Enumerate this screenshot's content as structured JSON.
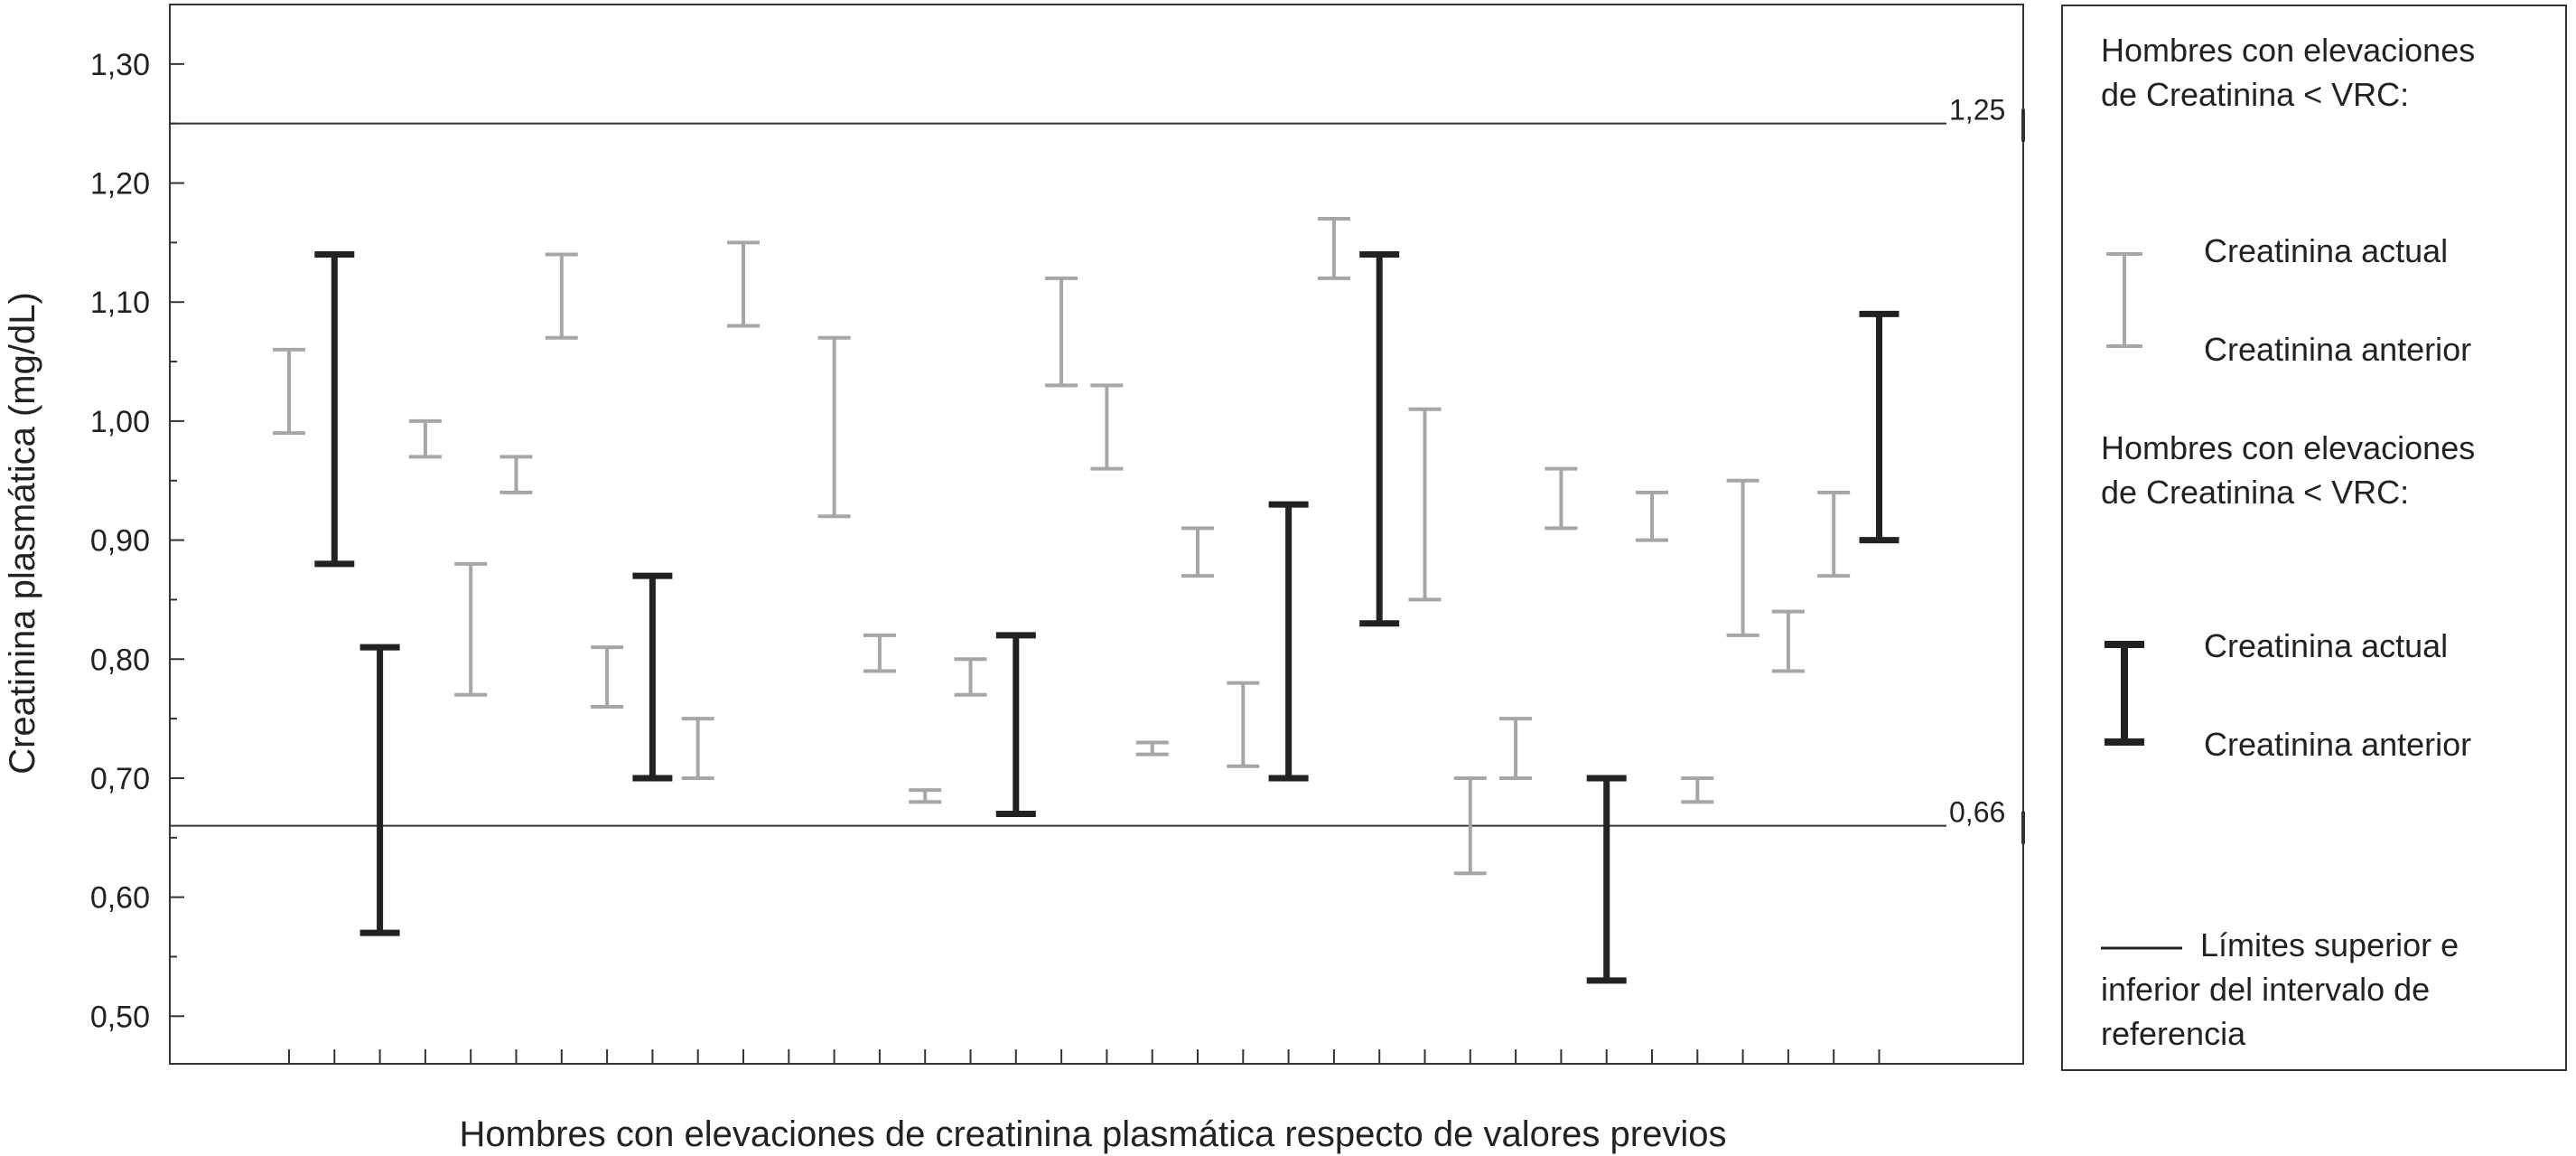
{
  "chart_data": {
    "type": "range_bar",
    "title": "",
    "xlabel": "Hombres con elevaciones de creatinina plasmática respecto de valores previos",
    "ylabel": "Creatinina plasmática (mg/dL)",
    "ylim": [
      0.46,
      1.35
    ],
    "yticks": [
      "0,50",
      "0,60",
      "0,70",
      "0,80",
      "0,90",
      "1,00",
      "1,10",
      "1,20",
      "1,30"
    ],
    "ytick_values": [
      0.5,
      0.6,
      0.7,
      0.8,
      0.9,
      1.0,
      1.1,
      1.2,
      1.3
    ],
    "grid": false,
    "x_tick_count": 36,
    "reference_lines": [
      {
        "label": "1,25",
        "value": 1.25
      },
      {
        "label": "0,66",
        "value": 0.66
      }
    ],
    "series": [
      {
        "group": "lt_vrc",
        "color": "#a6a6a6",
        "points": [
          {
            "x": 1,
            "low": 0.99,
            "high": 1.06
          },
          {
            "x": 4,
            "low": 0.97,
            "high": 1.0
          },
          {
            "x": 5,
            "low": 0.77,
            "high": 0.88
          },
          {
            "x": 6,
            "low": 0.94,
            "high": 0.97
          },
          {
            "x": 7,
            "low": 1.07,
            "high": 1.14
          },
          {
            "x": 8,
            "low": 0.76,
            "high": 0.81
          },
          {
            "x": 10,
            "low": 0.7,
            "high": 0.75
          },
          {
            "x": 11,
            "low": 1.08,
            "high": 1.15
          },
          {
            "x": 13,
            "low": 0.92,
            "high": 1.07
          },
          {
            "x": 14,
            "low": 0.79,
            "high": 0.82
          },
          {
            "x": 15,
            "low": 0.68,
            "high": 0.69
          },
          {
            "x": 16,
            "low": 0.77,
            "high": 0.8
          },
          {
            "x": 18,
            "low": 1.03,
            "high": 1.12
          },
          {
            "x": 19,
            "low": 0.96,
            "high": 1.03
          },
          {
            "x": 20,
            "low": 0.72,
            "high": 0.73
          },
          {
            "x": 21,
            "low": 0.87,
            "high": 0.91
          },
          {
            "x": 22,
            "low": 0.71,
            "high": 0.78
          },
          {
            "x": 24,
            "low": 1.12,
            "high": 1.17
          },
          {
            "x": 26,
            "low": 0.85,
            "high": 1.01
          },
          {
            "x": 27,
            "low": 0.62,
            "high": 0.7
          },
          {
            "x": 28,
            "low": 0.7,
            "high": 0.75
          },
          {
            "x": 29,
            "low": 0.91,
            "high": 0.96
          },
          {
            "x": 31,
            "low": 0.9,
            "high": 0.94
          },
          {
            "x": 32,
            "low": 0.68,
            "high": 0.7
          },
          {
            "x": 33,
            "low": 0.82,
            "high": 0.95
          },
          {
            "x": 34,
            "low": 0.79,
            "high": 0.84
          },
          {
            "x": 35,
            "low": 0.87,
            "high": 0.94
          }
        ]
      },
      {
        "group": "gt_vrc",
        "color": "#222222",
        "points": [
          {
            "x": 2,
            "low": 0.88,
            "high": 1.14
          },
          {
            "x": 3,
            "low": 0.57,
            "high": 0.81
          },
          {
            "x": 9,
            "low": 0.7,
            "high": 0.87
          },
          {
            "x": 17,
            "low": 0.67,
            "high": 0.82
          },
          {
            "x": 23,
            "low": 0.7,
            "high": 0.93
          },
          {
            "x": 25,
            "low": 0.83,
            "high": 1.14
          },
          {
            "x": 30,
            "low": 0.53,
            "high": 0.7
          },
          {
            "x": 36,
            "low": 0.9,
            "high": 1.09
          }
        ]
      }
    ]
  },
  "legend": {
    "group1_title": "Hombres con elevaciones de Creatinina < VRC:",
    "group1_actual": "Creatinina actual",
    "group1_anterior": "Creatinina anterior",
    "group2_title": "Hombres con elevaciones de Creatinina < VRC:",
    "group2_actual": "Creatinina actual",
    "group2_anterior": "Creatinina anterior",
    "ref_label": "Límites superior e inferior del intervalo de referencia"
  }
}
